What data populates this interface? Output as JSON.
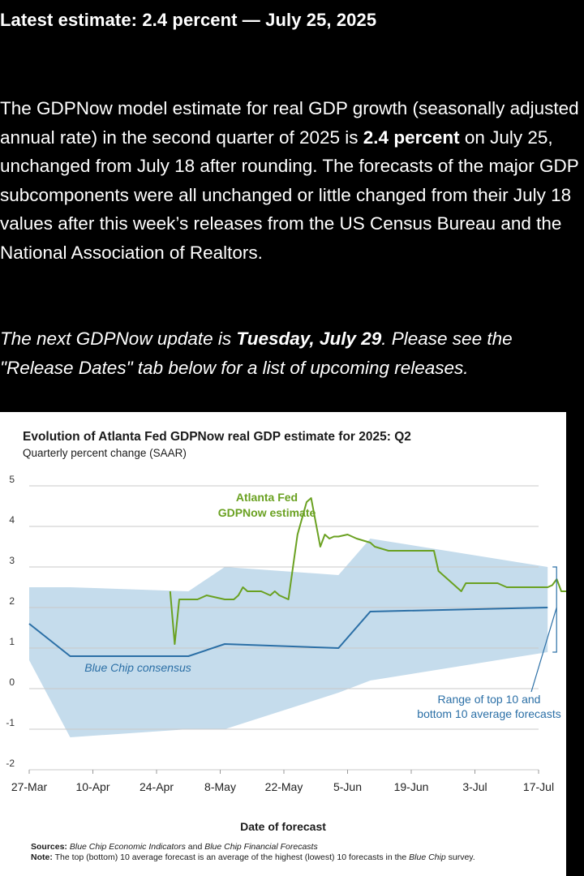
{
  "headline": "Latest estimate: 2.4 percent — July 25, 2025",
  "paragraph": {
    "before": "The GDPNow model estimate for real GDP growth (seasonally adjusted annual rate) in the second quarter of 2025 is ",
    "bold": "2.4 percent",
    "after": " on July 25, unchanged from July 18 after rounding. The forecasts of the major GDP subcomponents were all unchanged or little changed from their July 18 values after this week’s releases from the US Census Bureau and the National Association of Realtors."
  },
  "next_update": {
    "before": "The next GDPNow update is ",
    "bold": "Tuesday, July 29",
    "after": ". Please see the \"Release Dates\" tab below for a list of upcoming releases."
  },
  "chart_data": {
    "type": "line",
    "title": "Evolution of Atlanta Fed GDPNow real GDP estimate for 2025: Q2",
    "subtitle": "Quarterly percent change (SAAR)",
    "xlabel": "Date of forecast",
    "ylim": [
      -2,
      5
    ],
    "yticks": [
      "5",
      "4",
      "3",
      "2",
      "1",
      "0",
      "-1",
      "-2"
    ],
    "xticks": [
      "27-Mar",
      "10-Apr",
      "24-Apr",
      "8-May",
      "22-May",
      "5-Jun",
      "19-Jun",
      "3-Jul",
      "17-Jul"
    ],
    "grid": true,
    "colors": {
      "gdpnow": "#6aa121",
      "bluechip": "#2b6fa6",
      "range": "#c5dcec",
      "annotation": "#2b6fa6"
    },
    "series": [
      {
        "name": "Atlanta Fed GDPNow estimate",
        "x": [
          31,
          32,
          33,
          33,
          34,
          37,
          39,
          41,
          43,
          45,
          46,
          47,
          48,
          51,
          52,
          53,
          54,
          55,
          56,
          57,
          58,
          59,
          60,
          61,
          62,
          64,
          65,
          66,
          67,
          68,
          70,
          72,
          75,
          76,
          79,
          82,
          85,
          86,
          88,
          89,
          90,
          93,
          95,
          96,
          97,
          98,
          99,
          100,
          101,
          102,
          103,
          104,
          105,
          106,
          107,
          108,
          109,
          110,
          111,
          112,
          113,
          114,
          115,
          116,
          117,
          118,
          119,
          120,
          121
        ],
        "y": [
          2.4,
          1.1,
          2.2,
          2.2,
          2.2,
          2.2,
          2.3,
          2.25,
          2.2,
          2.2,
          2.3,
          2.5,
          2.4,
          2.4,
          2.35,
          2.3,
          2.4,
          2.3,
          2.25,
          2.2,
          3.0,
          3.8,
          4.2,
          4.6,
          4.7,
          3.5,
          3.8,
          3.7,
          3.75,
          3.75,
          3.8,
          3.7,
          3.6,
          3.5,
          3.4,
          3.4,
          3.4,
          3.4,
          3.4,
          3.4,
          2.9,
          2.6,
          2.4,
          2.6,
          2.6,
          2.6,
          2.6,
          2.6,
          2.6,
          2.6,
          2.6,
          2.55,
          2.5,
          2.5,
          2.5,
          2.5,
          2.5,
          2.5,
          2.5,
          2.5,
          2.5,
          2.5,
          2.55,
          2.7,
          2.4,
          2.4,
          2.4,
          2.4,
          2.4
        ]
      },
      {
        "name": "Blue Chip consensus",
        "x": [
          0,
          9,
          35,
          43,
          68,
          75,
          114
        ],
        "y": [
          1.6,
          0.8,
          0.8,
          1.1,
          1.0,
          1.9,
          2.0
        ]
      }
    ],
    "range": {
      "label": "Range of top 10 and bottom 10 average forecasts",
      "x": [
        0,
        9,
        35,
        43,
        68,
        75,
        114
      ],
      "high": [
        2.5,
        2.5,
        2.4,
        3.0,
        2.8,
        3.7,
        3.0
      ],
      "low": [
        0.7,
        -1.2,
        -1.0,
        -1.0,
        -0.1,
        0.2,
        0.9
      ]
    },
    "annotations": [
      {
        "text_lines": [
          "Atlanta Fed",
          "GDPNow estimate"
        ],
        "series": "gdpnow"
      },
      {
        "text_lines": [
          "Blue Chip consensus"
        ],
        "series": "bluechip"
      },
      {
        "text_lines": [
          "Range of top 10 and",
          "bottom 10 average forecasts"
        ],
        "series": "range"
      }
    ]
  },
  "sources": {
    "label": "Sources:",
    "text1": "Blue Chip Economic Indicators",
    "and": " and ",
    "text2": "Blue Chip Financial Forecasts"
  },
  "note": {
    "label": "Note:",
    "before": " The top (bottom) 10 average forecast is an average of the highest (lowest) 10 forecasts in the ",
    "italic": "Blue Chip",
    "after": " survey."
  }
}
